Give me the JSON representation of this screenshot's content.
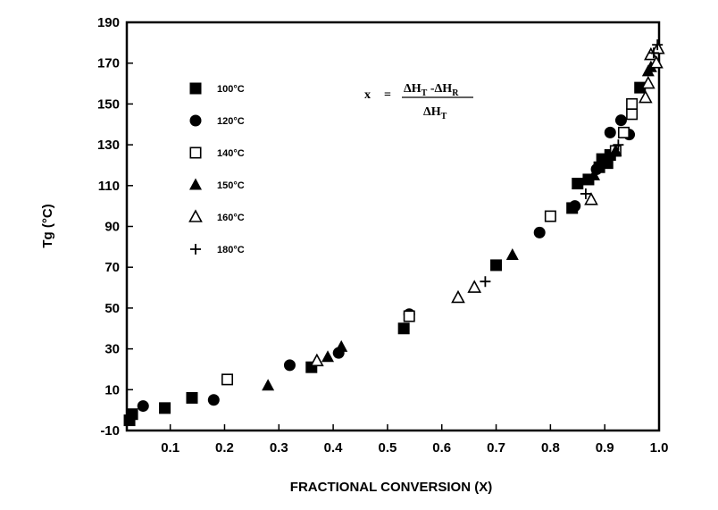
{
  "chart_data": {
    "type": "scatter",
    "xlabel": "FRACTIONAL CONVERSION (X)",
    "ylabel": "Tg  (°C)",
    "xlim": [
      0.02,
      1.0
    ],
    "ylim": [
      -10,
      190
    ],
    "xticks": [
      0.1,
      0.2,
      0.3,
      0.4,
      0.5,
      0.6,
      0.7,
      0.8,
      0.9,
      1.0
    ],
    "xtick_labels": [
      "0.1",
      "0.2",
      "0.3",
      "0.4",
      "0.5",
      "0.6",
      "0.7",
      "0.8",
      "0.9",
      "1.0"
    ],
    "yticks": [
      -10,
      10,
      30,
      50,
      70,
      90,
      110,
      130,
      150,
      170,
      190
    ],
    "ytick_labels": [
      "-10",
      "10",
      "30",
      "50",
      "70",
      "90",
      "110",
      "130",
      "150",
      "170",
      "190"
    ],
    "grid": false,
    "legend_position": "top-left",
    "annotation": {
      "x_label": "x",
      "equals": "=",
      "numerator": "ΔH",
      "numerator_sub1": "T",
      "numerator_mid": " -ΔH",
      "numerator_sub2": "R",
      "denominator": "ΔH",
      "denominator_sub": "T"
    },
    "series": [
      {
        "name": "100°C",
        "marker": "filled-square",
        "points": [
          [
            0.025,
            -5
          ],
          [
            0.03,
            -2
          ],
          [
            0.09,
            1
          ],
          [
            0.14,
            6
          ],
          [
            0.36,
            21
          ],
          [
            0.53,
            40
          ],
          [
            0.7,
            71
          ],
          [
            0.84,
            99
          ],
          [
            0.85,
            111
          ],
          [
            0.87,
            113
          ],
          [
            0.89,
            119
          ],
          [
            0.895,
            123
          ],
          [
            0.905,
            121
          ],
          [
            0.91,
            125
          ],
          [
            0.965,
            158
          ]
        ]
      },
      {
        "name": "120°C",
        "marker": "filled-circle",
        "points": [
          [
            0.05,
            2
          ],
          [
            0.18,
            5
          ],
          [
            0.32,
            22
          ],
          [
            0.41,
            28
          ],
          [
            0.54,
            47
          ],
          [
            0.78,
            87
          ],
          [
            0.845,
            100
          ],
          [
            0.885,
            118
          ],
          [
            0.91,
            136
          ],
          [
            0.93,
            142
          ],
          [
            0.945,
            135
          ]
        ]
      },
      {
        "name": "140°C",
        "marker": "open-square",
        "points": [
          [
            0.205,
            15
          ],
          [
            0.54,
            46
          ],
          [
            0.8,
            95
          ],
          [
            0.92,
            127
          ],
          [
            0.935,
            136
          ],
          [
            0.95,
            145
          ],
          [
            0.95,
            150
          ]
        ]
      },
      {
        "name": "150°C",
        "marker": "filled-triangle",
        "points": [
          [
            0.28,
            12
          ],
          [
            0.39,
            26
          ],
          [
            0.415,
            31
          ],
          [
            0.73,
            76
          ],
          [
            0.88,
            115
          ],
          [
            0.92,
            127
          ],
          [
            0.98,
            166
          ],
          [
            0.985,
            168
          ]
        ]
      },
      {
        "name": "160°C",
        "marker": "open-triangle",
        "points": [
          [
            0.37,
            24
          ],
          [
            0.63,
            55
          ],
          [
            0.66,
            60
          ],
          [
            0.875,
            103
          ],
          [
            0.975,
            153
          ],
          [
            0.98,
            160
          ],
          [
            0.985,
            174
          ],
          [
            0.995,
            170
          ],
          [
            0.998,
            177
          ]
        ]
      },
      {
        "name": "180°C",
        "marker": "plus",
        "points": [
          [
            0.68,
            63
          ],
          [
            0.865,
            106
          ],
          [
            0.925,
            130
          ],
          [
            0.99,
            175
          ],
          [
            0.997,
            179
          ]
        ]
      }
    ]
  }
}
